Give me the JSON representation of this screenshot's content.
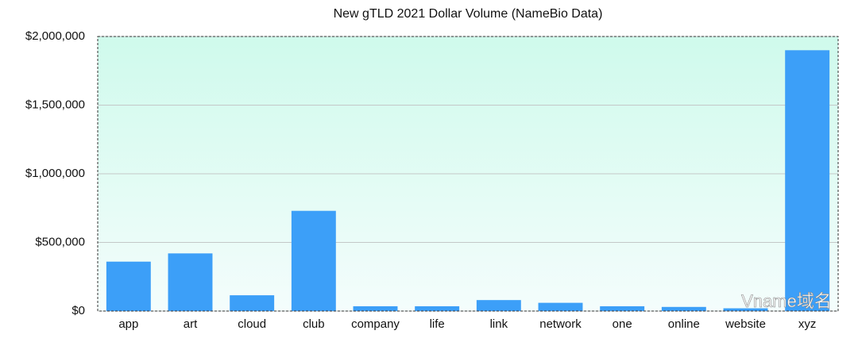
{
  "chart_data": {
    "type": "bar",
    "title": "New gTLD 2021 Dollar Volume (NameBio Data)",
    "categories": [
      "app",
      "art",
      "cloud",
      "club",
      "company",
      "life",
      "link",
      "network",
      "one",
      "online",
      "website",
      "xyz"
    ],
    "values": [
      360000,
      420000,
      115000,
      730000,
      35000,
      35000,
      80000,
      60000,
      35000,
      30000,
      20000,
      1900000
    ],
    "color": "#3c9ff8",
    "ylim": [
      0,
      2000000
    ],
    "yticks": [
      {
        "value": 0,
        "label": "$0"
      },
      {
        "value": 500000,
        "label": "$500,000"
      },
      {
        "value": 1000000,
        "label": "$1,000,000"
      },
      {
        "value": 1500000,
        "label": "$1,500,000"
      },
      {
        "value": 2000000,
        "label": "$2,000,000"
      }
    ],
    "grid": true,
    "watermark": "Vname域名"
  }
}
